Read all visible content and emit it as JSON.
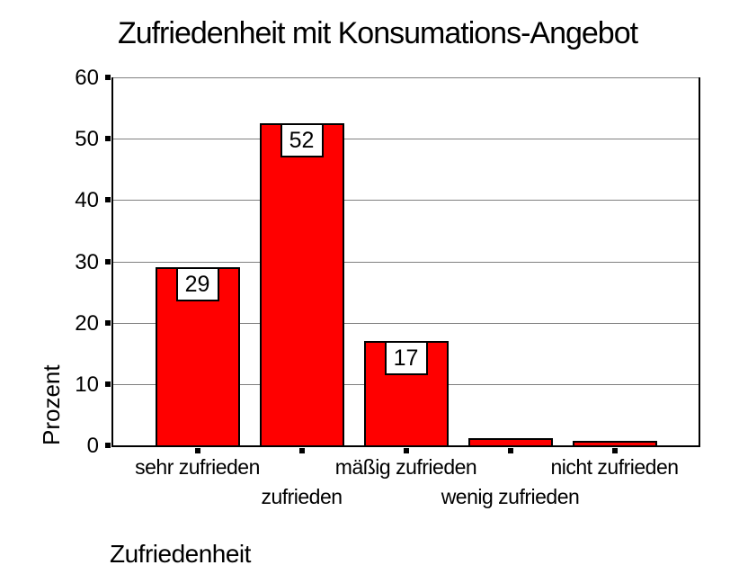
{
  "chart_data": {
    "type": "bar",
    "title": "Zufriedenheit mit Konsumations-Angebot",
    "categories": [
      "sehr zufrieden",
      "zufrieden",
      "mäßig zufrieden",
      "wenig zufrieden",
      "nicht zufrieden"
    ],
    "values": [
      29,
      52.5,
      17,
      1.2,
      0.8
    ],
    "bar_labels": [
      "29",
      "52",
      "17",
      "",
      ""
    ],
    "xlabel": "Zufriedenheit",
    "ylabel": "Prozent",
    "ylim": [
      0,
      60
    ],
    "yticks": [
      0,
      10,
      20,
      30,
      40,
      50,
      60
    ],
    "grid": true,
    "legend": "none",
    "x_labels_staggered": true,
    "colors": {
      "bar_fill": "#FF0000",
      "bar_border": "#000000",
      "gridline": "#808080",
      "axis": "#000000",
      "background": "#FFFFFF",
      "text": "#000000",
      "value_box_bg": "#FFFFFF",
      "value_box_border": "#000000"
    }
  }
}
